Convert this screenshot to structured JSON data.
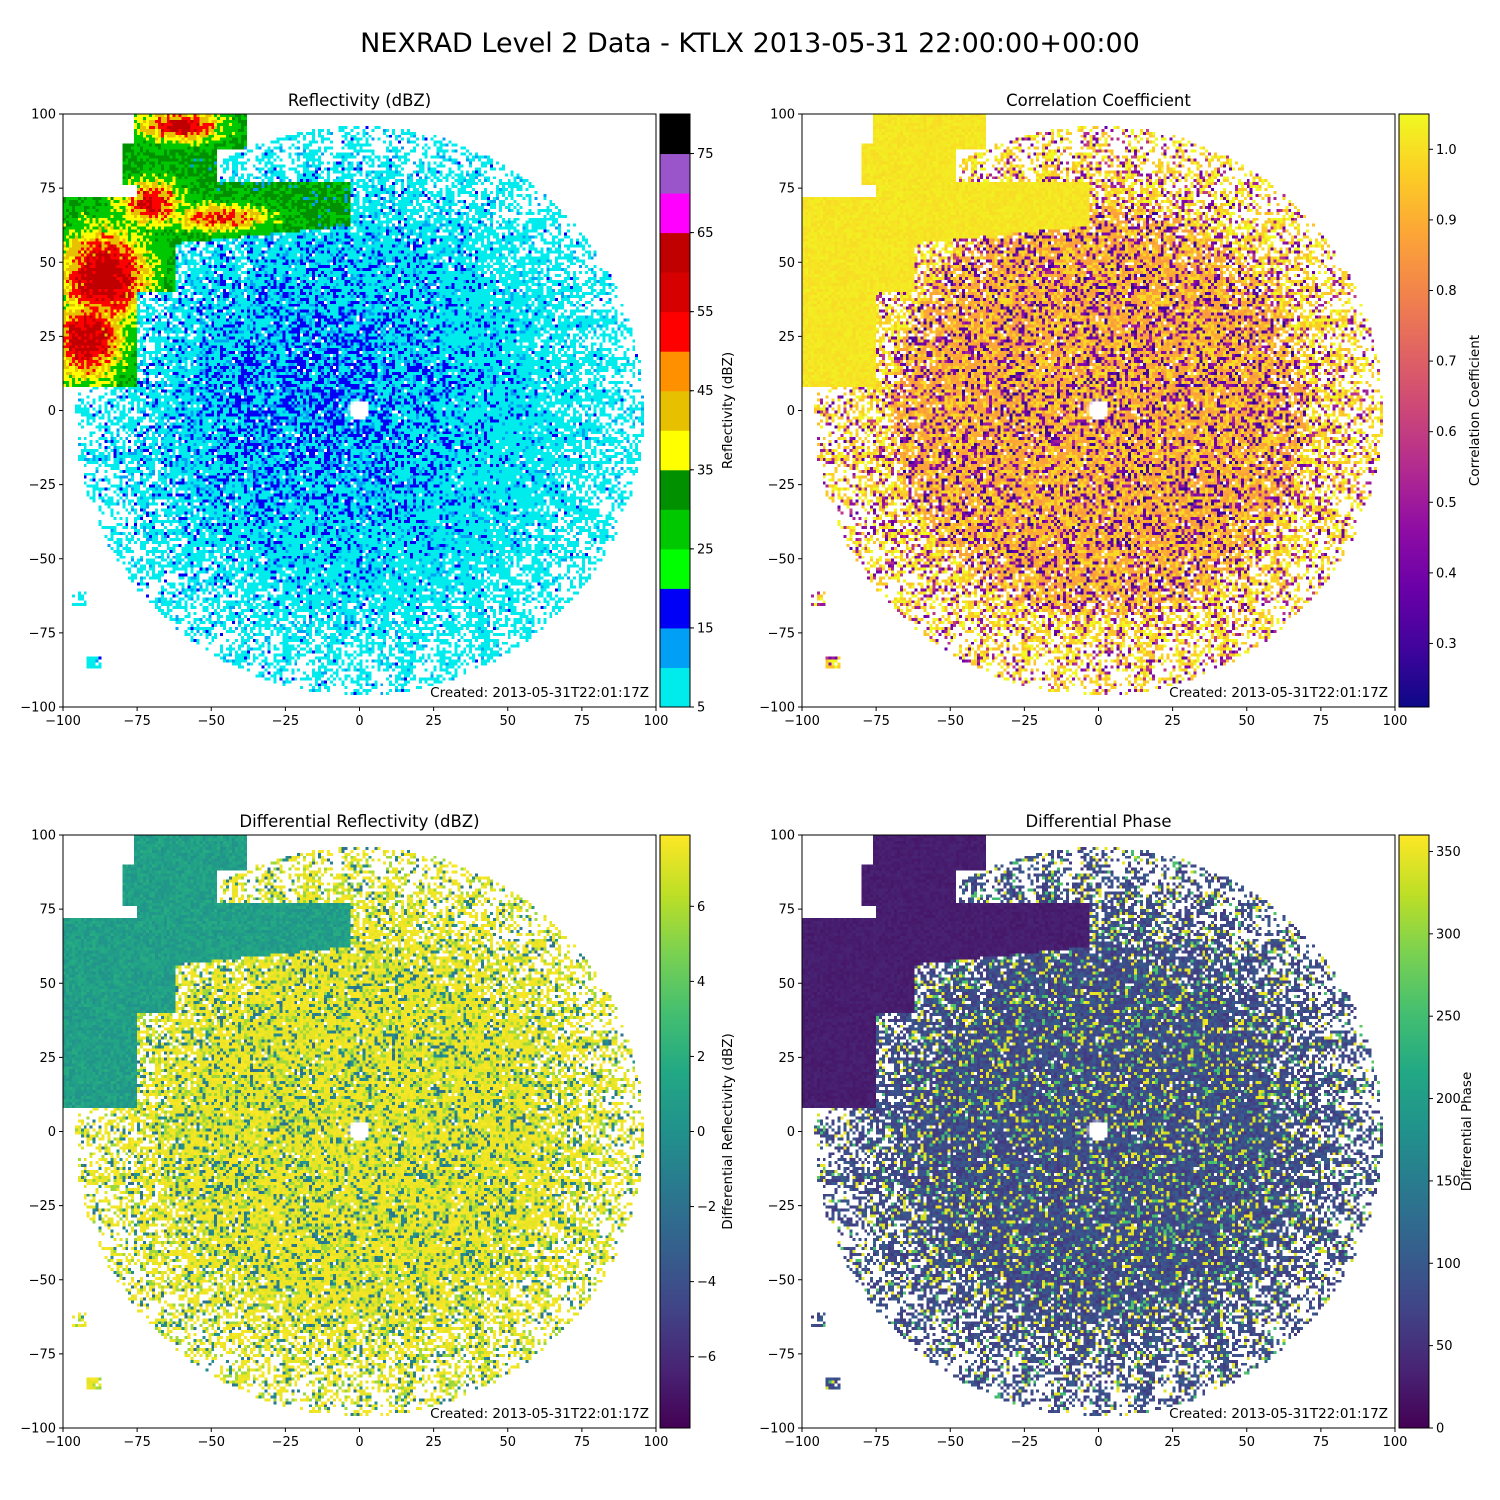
{
  "figure": {
    "title": "NEXRAD Level 2 Data - KTLX 2013-05-31 22:00:00+00:00"
  },
  "chart_data": [
    {
      "type": "heatmap",
      "title": "Reflectivity (dBZ)",
      "xlim": [
        -100,
        100
      ],
      "ylim": [
        -100,
        100
      ],
      "xticks": [
        -100,
        -75,
        -50,
        -25,
        0,
        25,
        50,
        75,
        100
      ],
      "yticks": [
        -100,
        -75,
        -50,
        -25,
        0,
        25,
        50,
        75,
        100
      ],
      "annotation": "Created: 2013-05-31T22:01:17Z",
      "colorbar": {
        "label": "Reflectivity (dBZ)",
        "kind": "discrete",
        "range": [
          5,
          80
        ],
        "ticks": [
          5,
          15,
          25,
          35,
          45,
          55,
          65,
          75
        ],
        "colors": [
          "#00ecec",
          "#01a0f6",
          "#0000f6",
          "#00ff00",
          "#00c800",
          "#009000",
          "#ffff00",
          "#e7c000",
          "#ff9000",
          "#ff0000",
          "#d60000",
          "#c00000",
          "#ff00ff",
          "#9955c9",
          "#000000"
        ]
      }
    },
    {
      "type": "heatmap",
      "title": "Correlation Coefficient",
      "xlim": [
        -100,
        100
      ],
      "ylim": [
        -100,
        100
      ],
      "xticks": [
        -100,
        -75,
        -50,
        -25,
        0,
        25,
        50,
        75,
        100
      ],
      "yticks": [
        -100,
        -75,
        -50,
        -25,
        0,
        25,
        50,
        75,
        100
      ],
      "annotation": "Created: 2013-05-31T22:01:17Z",
      "colorbar": {
        "label": "Correlation Coefficient",
        "kind": "continuous",
        "cmap": "plasma",
        "range": [
          0.21,
          1.05
        ],
        "ticks": [
          0.3,
          0.4,
          0.5,
          0.6,
          0.7,
          0.8,
          0.9,
          1.0
        ],
        "tick_labels": [
          "0.3",
          "0.4",
          "0.5",
          "0.6",
          "0.7",
          "0.8",
          "0.9",
          "1.0"
        ]
      }
    },
    {
      "type": "heatmap",
      "title": "Differential Reflectivity (dBZ)",
      "xlim": [
        -100,
        100
      ],
      "ylim": [
        -100,
        100
      ],
      "xticks": [
        -100,
        -75,
        -50,
        -25,
        0,
        25,
        50,
        75,
        100
      ],
      "yticks": [
        -100,
        -75,
        -50,
        -25,
        0,
        25,
        50,
        75,
        100
      ],
      "annotation": "Created: 2013-05-31T22:01:17Z",
      "colorbar": {
        "label": "Differential Reflectivity (dBZ)",
        "kind": "continuous",
        "cmap": "viridis",
        "range": [
          -7.9,
          7.9
        ],
        "ticks": [
          -6,
          -4,
          -2,
          0,
          2,
          4,
          6
        ],
        "tick_labels": [
          "−6",
          "−4",
          "−2",
          "0",
          "2",
          "4",
          "6"
        ]
      }
    },
    {
      "type": "heatmap",
      "title": "Differential Phase",
      "xlim": [
        -100,
        100
      ],
      "ylim": [
        -100,
        100
      ],
      "xticks": [
        -100,
        -75,
        -50,
        -25,
        0,
        25,
        50,
        75,
        100
      ],
      "yticks": [
        -100,
        -75,
        -50,
        -25,
        0,
        25,
        50,
        75,
        100
      ],
      "annotation": "Created: 2013-05-31T22:01:17Z",
      "colorbar": {
        "label": "Differential Phase",
        "kind": "continuous",
        "cmap": "viridis",
        "range": [
          0,
          360
        ],
        "ticks": [
          0,
          50,
          100,
          150,
          200,
          250,
          300,
          350
        ],
        "tick_labels": [
          "0",
          "50",
          "100",
          "150",
          "200",
          "250",
          "300",
          "350"
        ]
      }
    }
  ]
}
